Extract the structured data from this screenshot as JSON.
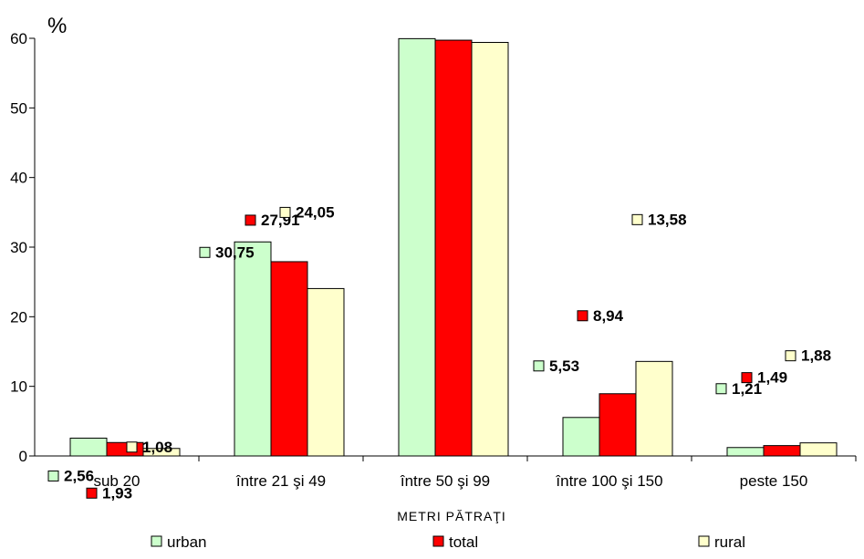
{
  "chart_data": {
    "type": "bar",
    "title": "",
    "ylabel": "%",
    "xlabel": "METRI PĂTRAŢI",
    "ylim": [
      0,
      60
    ],
    "yticks": [
      0,
      10,
      20,
      30,
      40,
      50,
      60
    ],
    "categories": [
      "sub 20",
      "între 21 şi 49",
      "între 50 şi 99",
      "între 100 şi 150",
      "peste 150"
    ],
    "series": [
      {
        "name": "urban",
        "color": "#ccffcc",
        "values": [
          2.56,
          30.75,
          59.95,
          5.53,
          1.21
        ],
        "labels": [
          "2,56",
          "30,75",
          "59,95",
          "5,53",
          "1,21"
        ]
      },
      {
        "name": "total",
        "color": "#ff0000",
        "values": [
          1.93,
          27.91,
          59.73,
          8.94,
          1.49
        ],
        "labels": [
          "1,93",
          "27,91",
          "59,73",
          "8,94",
          "1,49"
        ]
      },
      {
        "name": "rural",
        "color": "#ffffcc",
        "values": [
          1.08,
          24.05,
          59.41,
          13.58,
          1.88
        ],
        "labels": [
          "1,08",
          "24,05",
          "59,41",
          "13,58",
          "1,88"
        ]
      }
    ],
    "legend": {
      "position": "bottom"
    },
    "grid": false
  }
}
